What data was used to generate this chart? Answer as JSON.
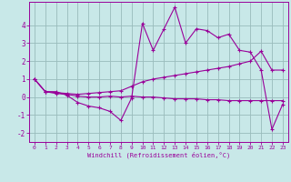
{
  "xlabel": "Windchill (Refroidissement éolien,°C)",
  "background_color": "#c8e8e8",
  "grid_color": "#99bbbb",
  "line_color": "#990099",
  "x": [
    0,
    1,
    2,
    3,
    4,
    5,
    6,
    7,
    8,
    9,
    10,
    11,
    12,
    13,
    14,
    15,
    16,
    17,
    18,
    19,
    20,
    21,
    22,
    23
  ],
  "y_main": [
    1.0,
    0.3,
    0.3,
    0.1,
    -0.3,
    -0.5,
    -0.6,
    -0.8,
    -1.3,
    -0.05,
    4.1,
    2.6,
    3.8,
    5.0,
    3.0,
    3.8,
    3.7,
    3.3,
    3.5,
    2.6,
    2.5,
    1.5,
    -1.8,
    -0.4
  ],
  "y_upper": [
    1.0,
    0.3,
    0.25,
    0.2,
    0.15,
    0.2,
    0.25,
    0.3,
    0.35,
    0.6,
    0.85,
    1.0,
    1.1,
    1.2,
    1.3,
    1.4,
    1.5,
    1.6,
    1.7,
    1.85,
    2.0,
    2.55,
    1.5,
    1.5
  ],
  "y_lower": [
    1.0,
    0.3,
    0.2,
    0.15,
    0.05,
    0.0,
    0.0,
    0.05,
    0.0,
    0.05,
    0.0,
    0.0,
    -0.05,
    -0.1,
    -0.1,
    -0.1,
    -0.15,
    -0.15,
    -0.2,
    -0.2,
    -0.2,
    -0.2,
    -0.2,
    -0.2
  ],
  "ylim": [
    -2.5,
    5.3
  ],
  "xlim": [
    -0.5,
    23.5
  ],
  "yticks": [
    -2,
    -1,
    0,
    1,
    2,
    3,
    4
  ],
  "xticks": [
    0,
    1,
    2,
    3,
    4,
    5,
    6,
    7,
    8,
    9,
    10,
    11,
    12,
    13,
    14,
    15,
    16,
    17,
    18,
    19,
    20,
    21,
    22,
    23
  ]
}
